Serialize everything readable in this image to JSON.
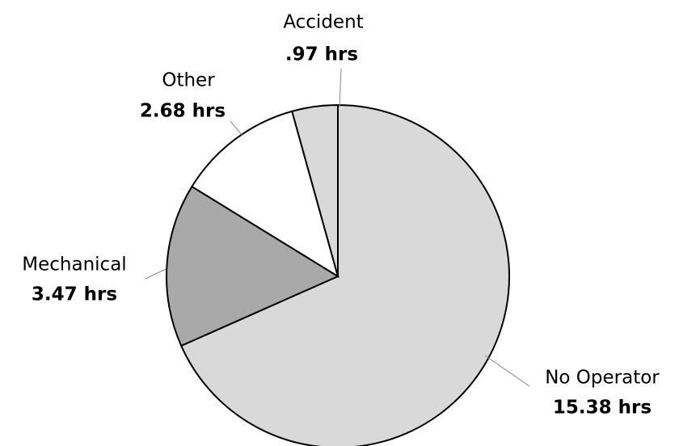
{
  "chart_data": {
    "type": "pie",
    "categories": [
      "No Operator",
      "Mechanical",
      "Other",
      "Accident"
    ],
    "values": [
      15.38,
      3.47,
      2.68,
      0.97
    ],
    "value_labels": [
      "15.38 hrs",
      "3.47 hrs",
      "2.68 hrs",
      ".97 hrs"
    ],
    "colors": [
      "#d9d9d9",
      "#a9a9a9",
      "#ffffff",
      "#d9d9d9"
    ],
    "start_angle": 0,
    "direction": "clockwise"
  }
}
